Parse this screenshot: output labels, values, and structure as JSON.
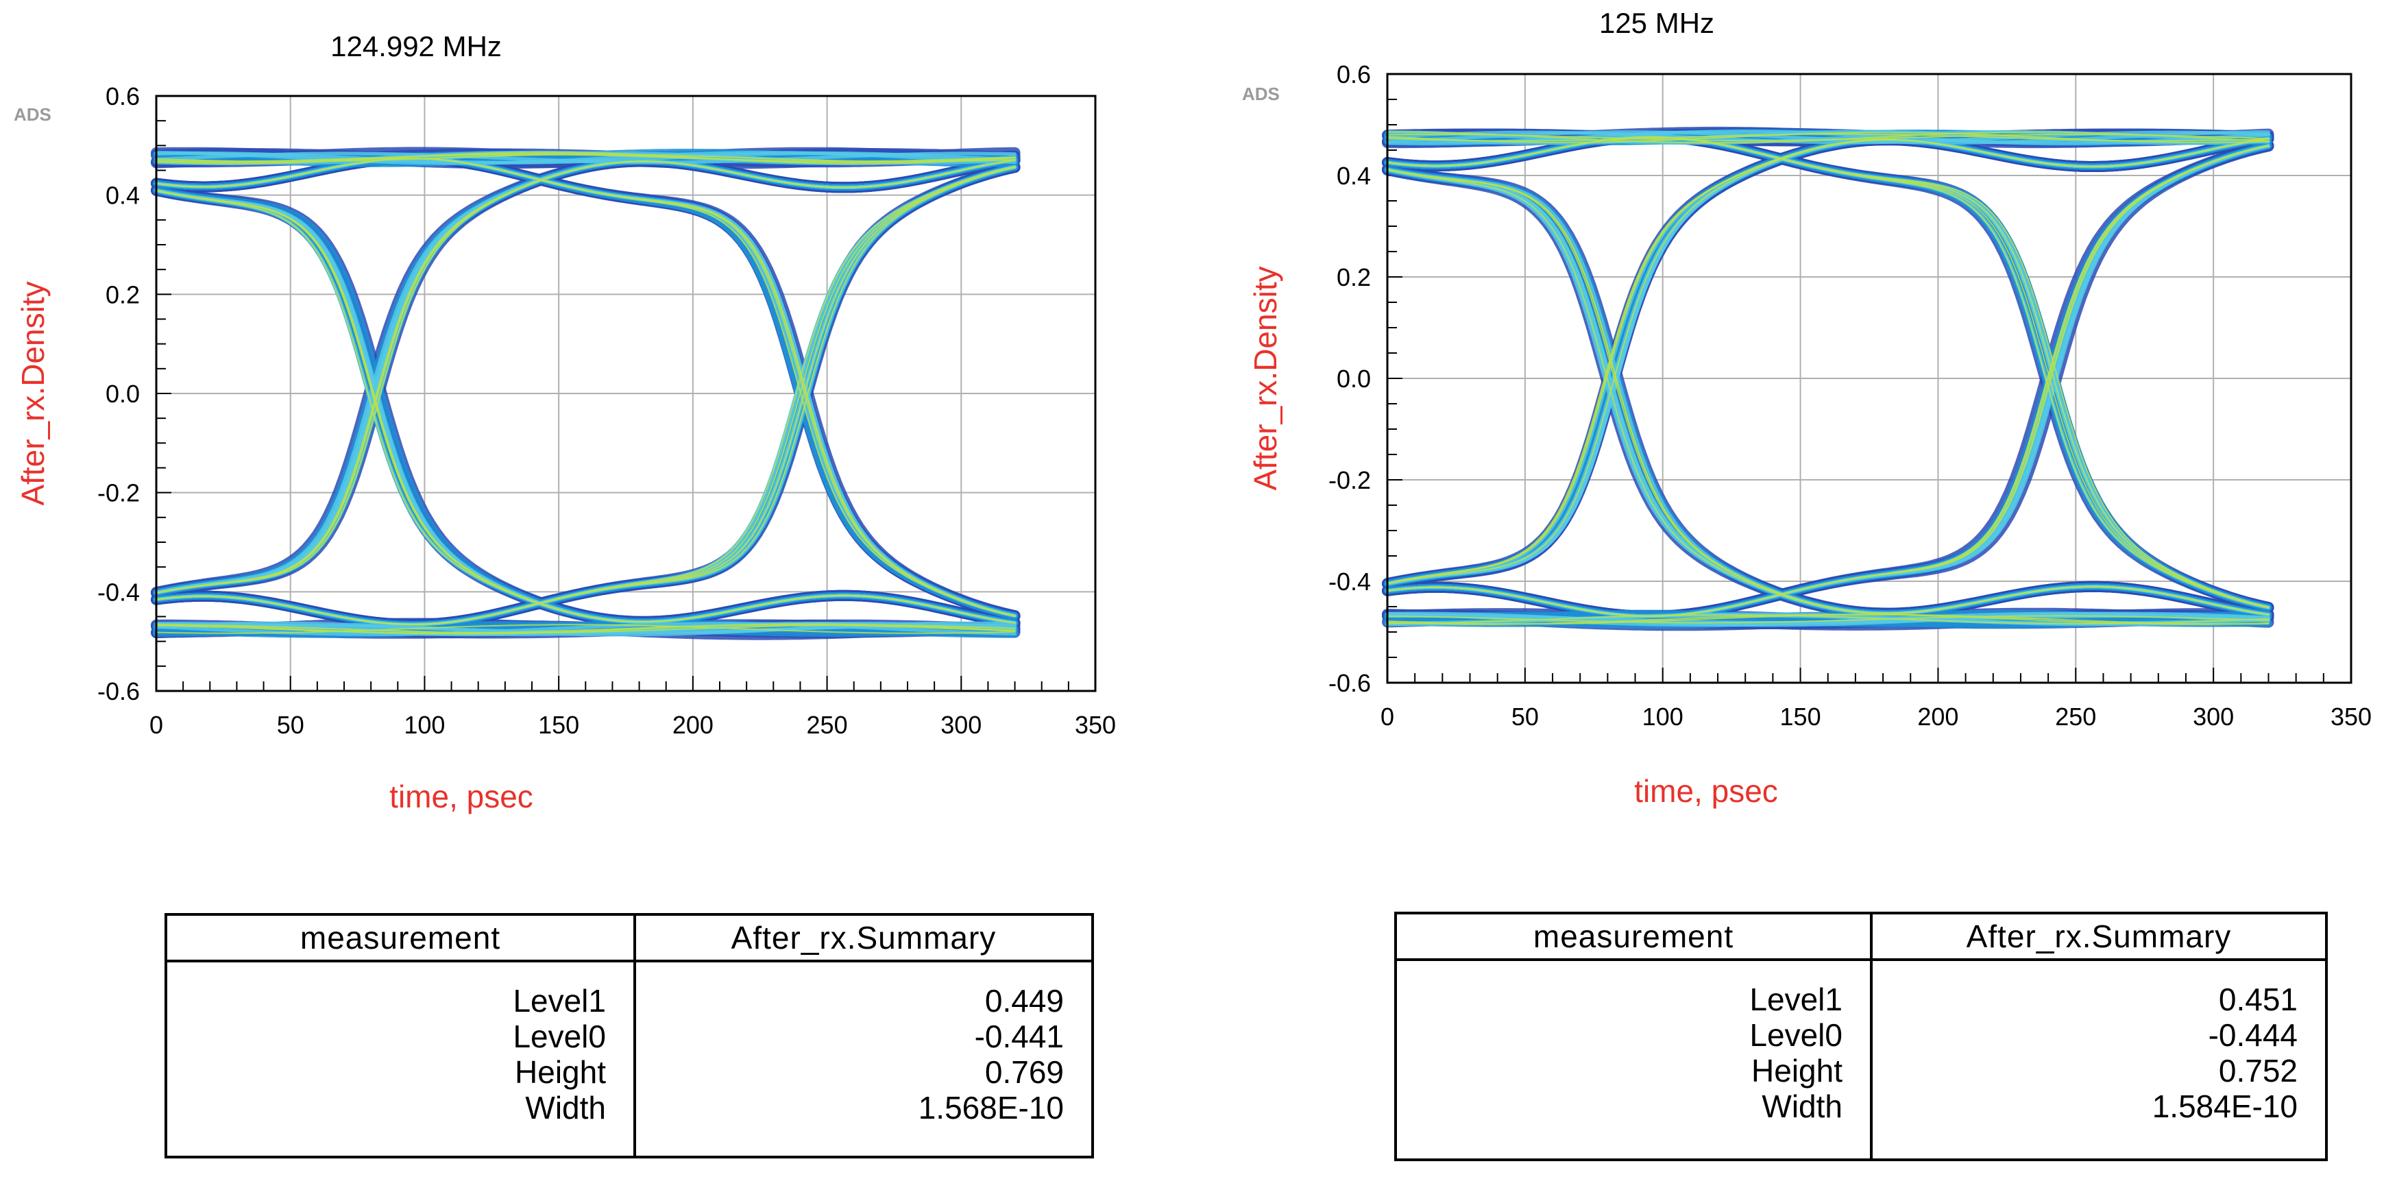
{
  "colors": {
    "axis_label": "#e8322b",
    "grid": "#b0b0b0",
    "trace_outer": "#2b4bb5",
    "trace_mid": "#1f8fd6",
    "trace_inner": "#55c9e6",
    "trace_hot": "#b8e04a"
  },
  "chart_data": [
    {
      "type": "eye-diagram",
      "title": "124.992 MHz",
      "watermark": "ADS",
      "xlabel": "time, psec",
      "ylabel": "After_rx.Density",
      "xlim": [
        0,
        350
      ],
      "ylim": [
        -0.6,
        0.6
      ],
      "xticks": [
        "0",
        "50",
        "100",
        "150",
        "200",
        "250",
        "300",
        "350"
      ],
      "yticks": [
        "-0.6",
        "-0.4",
        "-0.2",
        "0.0",
        "0.2",
        "0.4",
        "0.6"
      ],
      "data_span_ps": [
        0,
        320
      ],
      "crossings_ps": [
        80,
        240
      ],
      "crossing_level": 0.0,
      "levels": {
        "high": 0.449,
        "low": -0.441
      },
      "rail_high": 0.475,
      "rail_low": -0.475,
      "table": {
        "headers": [
          "measurement",
          "After_rx.Summary"
        ],
        "rows": [
          {
            "name": "Level1",
            "value": "0.449"
          },
          {
            "name": "Level0",
            "value": "-0.441"
          },
          {
            "name": "Height",
            "value": "0.769"
          },
          {
            "name": "Width",
            "value": "1.568E-10"
          }
        ]
      }
    },
    {
      "type": "eye-diagram",
      "title": "125 MHz",
      "watermark": "ADS",
      "xlabel": "time, psec",
      "ylabel": "After_rx.Density",
      "xlim": [
        0,
        350
      ],
      "ylim": [
        -0.6,
        0.6
      ],
      "xticks": [
        "0",
        "50",
        "100",
        "150",
        "200",
        "250",
        "300",
        "350"
      ],
      "yticks": [
        "-0.6",
        "-0.4",
        "-0.2",
        "0.0",
        "0.2",
        "0.4",
        "0.6"
      ],
      "data_span_ps": [
        0,
        320
      ],
      "crossings_ps": [
        80,
        240
      ],
      "crossing_level": 0.0,
      "levels": {
        "high": 0.451,
        "low": -0.444
      },
      "rail_high": 0.475,
      "rail_low": -0.475,
      "table": {
        "headers": [
          "measurement",
          "After_rx.Summary"
        ],
        "rows": [
          {
            "name": "Level1",
            "value": "0.451"
          },
          {
            "name": "Level0",
            "value": "-0.444"
          },
          {
            "name": "Height",
            "value": "0.752"
          },
          {
            "name": "Width",
            "value": "1.584E-10"
          }
        ]
      }
    }
  ]
}
